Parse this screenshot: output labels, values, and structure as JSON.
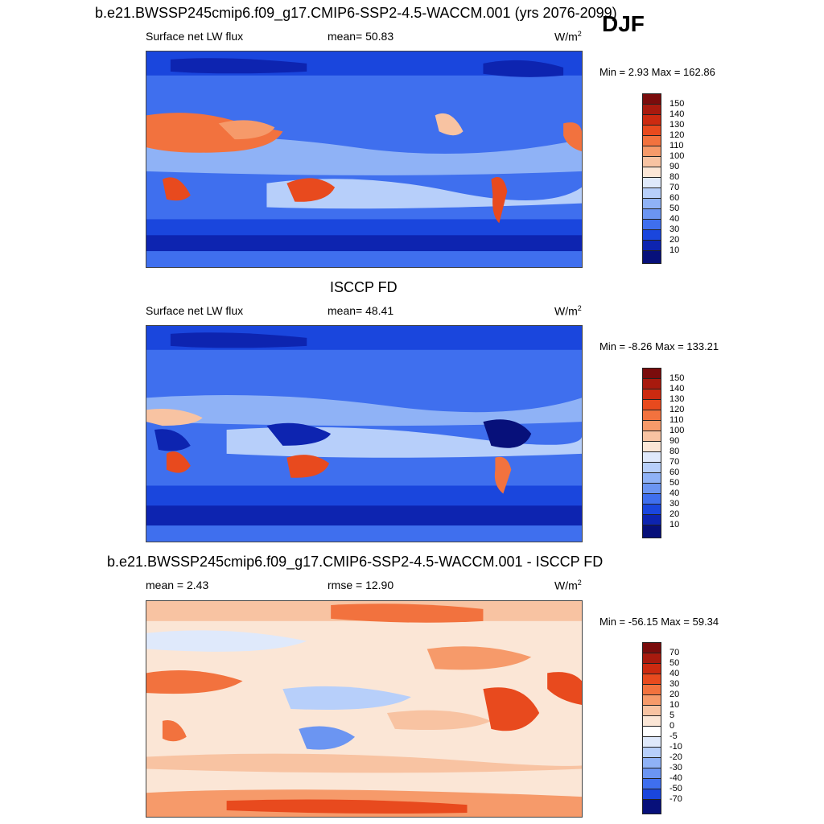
{
  "season": "DJF",
  "panels": [
    {
      "title": "b.e21.BWSSP245cmip6.f09_g17.CMIP6-SSP2-4.5-WACCM.001 (yrs 2076-2099)",
      "left": "Surface net LW flux",
      "center": "mean=  50.83",
      "unit_base": "W/m",
      "unit_exp": "2",
      "minmax": "Min =   2.93 Max = 162.86",
      "levels": [
        "150",
        "140",
        "130",
        "120",
        "110",
        "100",
        "90",
        "80",
        "70",
        "60",
        "50",
        "40",
        "30",
        "20",
        "10"
      ],
      "colors": [
        "#7a0c0c",
        "#a81a0e",
        "#cc2a10",
        "#e84a1e",
        "#f2723e",
        "#f69a6a",
        "#f8c3a2",
        "#fbe6d6",
        "#dfe9fb",
        "#b7cffa",
        "#8fb2f6",
        "#6b95f2",
        "#3f6fee",
        "#1a46dd",
        "#0d24b0",
        "#07107a"
      ]
    },
    {
      "title": "ISCCP FD",
      "left": "Surface net LW flux",
      "center": "mean=  48.41",
      "unit_base": "W/m",
      "unit_exp": "2",
      "minmax": "Min =  -8.26 Max = 133.21",
      "levels": [
        "150",
        "140",
        "130",
        "120",
        "110",
        "100",
        "90",
        "80",
        "70",
        "60",
        "50",
        "40",
        "30",
        "20",
        "10"
      ],
      "colors": [
        "#7a0c0c",
        "#a81a0e",
        "#cc2a10",
        "#e84a1e",
        "#f2723e",
        "#f69a6a",
        "#f8c3a2",
        "#fbe6d6",
        "#dfe9fb",
        "#b7cffa",
        "#8fb2f6",
        "#6b95f2",
        "#3f6fee",
        "#1a46dd",
        "#0d24b0",
        "#07107a"
      ]
    },
    {
      "title": "b.e21.BWSSP245cmip6.f09_g17.CMIP6-SSP2-4.5-WACCM.001 - ISCCP FD",
      "left": "mean =   2.43",
      "center": "rmse =  12.90",
      "unit_base": "W/m",
      "unit_exp": "2",
      "minmax": "Min = -56.15 Max =  59.34",
      "levels": [
        "70",
        "50",
        "40",
        "30",
        "20",
        "10",
        "5",
        "0",
        "-5",
        "-10",
        "-20",
        "-30",
        "-40",
        "-50",
        "-70"
      ],
      "colors": [
        "#7a0c0c",
        "#a81a0e",
        "#cc2a10",
        "#e84a1e",
        "#f2723e",
        "#f69a6a",
        "#f8c3a2",
        "#fbe6d6",
        "#ffffff",
        "#dfe9fb",
        "#b7cffa",
        "#8fb2f6",
        "#6b95f2",
        "#3f6fee",
        "#1a46dd",
        "#07107a"
      ]
    }
  ]
}
